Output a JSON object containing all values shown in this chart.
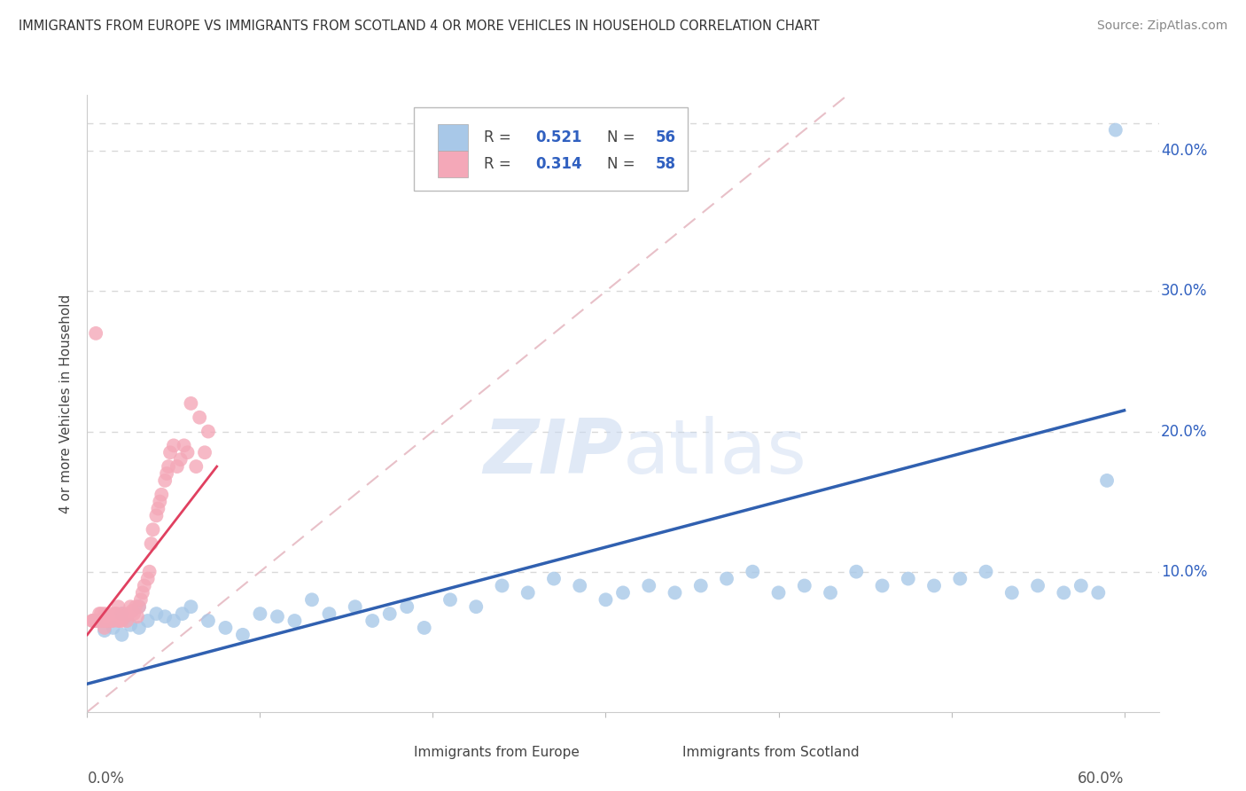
{
  "title": "IMMIGRANTS FROM EUROPE VS IMMIGRANTS FROM SCOTLAND 4 OR MORE VEHICLES IN HOUSEHOLD CORRELATION CHART",
  "source": "Source: ZipAtlas.com",
  "ylabel": "4 or more Vehicles in Household",
  "legend_europe_r": "0.521",
  "legend_europe_n": "56",
  "legend_scotland_r": "0.314",
  "legend_scotland_n": "58",
  "europe_color": "#a8c8e8",
  "scotland_color": "#f4a8b8",
  "europe_line_color": "#3060b0",
  "scotland_line_color": "#e04060",
  "ref_line_color": "#e8c0c8",
  "watermark_color": "#c8d8f0",
  "legend_value_color": "#3060c0",
  "ytick_color": "#3060c0",
  "grid_color": "#d8d8d8",
  "xlim": [
    0.0,
    0.62
  ],
  "ylim": [
    0.0,
    0.44
  ],
  "europe_x": [
    0.005,
    0.01,
    0.015,
    0.02,
    0.02,
    0.025,
    0.03,
    0.03,
    0.035,
    0.04,
    0.045,
    0.05,
    0.055,
    0.06,
    0.07,
    0.08,
    0.09,
    0.1,
    0.11,
    0.12,
    0.13,
    0.14,
    0.155,
    0.165,
    0.175,
    0.185,
    0.195,
    0.21,
    0.225,
    0.24,
    0.255,
    0.27,
    0.285,
    0.3,
    0.31,
    0.325,
    0.34,
    0.355,
    0.37,
    0.385,
    0.4,
    0.415,
    0.43,
    0.445,
    0.46,
    0.475,
    0.49,
    0.505,
    0.52,
    0.535,
    0.55,
    0.565,
    0.575,
    0.585,
    0.59,
    0.595
  ],
  "europe_y": [
    0.065,
    0.058,
    0.06,
    0.055,
    0.07,
    0.062,
    0.06,
    0.075,
    0.065,
    0.07,
    0.068,
    0.065,
    0.07,
    0.075,
    0.065,
    0.06,
    0.055,
    0.07,
    0.068,
    0.065,
    0.08,
    0.07,
    0.075,
    0.065,
    0.07,
    0.075,
    0.06,
    0.08,
    0.075,
    0.09,
    0.085,
    0.095,
    0.09,
    0.08,
    0.085,
    0.09,
    0.085,
    0.09,
    0.095,
    0.1,
    0.085,
    0.09,
    0.085,
    0.1,
    0.09,
    0.095,
    0.09,
    0.095,
    0.1,
    0.085,
    0.09,
    0.085,
    0.09,
    0.085,
    0.165,
    0.415
  ],
  "scotland_x": [
    0.003,
    0.005,
    0.005,
    0.006,
    0.007,
    0.008,
    0.008,
    0.009,
    0.01,
    0.01,
    0.011,
    0.012,
    0.013,
    0.014,
    0.015,
    0.016,
    0.017,
    0.018,
    0.018,
    0.019,
    0.02,
    0.021,
    0.022,
    0.023,
    0.024,
    0.025,
    0.026,
    0.027,
    0.028,
    0.029,
    0.03,
    0.031,
    0.032,
    0.033,
    0.035,
    0.036,
    0.037,
    0.038,
    0.04,
    0.041,
    0.042,
    0.043,
    0.045,
    0.046,
    0.047,
    0.048,
    0.05,
    0.052,
    0.054,
    0.056,
    0.058,
    0.06,
    0.063,
    0.065,
    0.068,
    0.07,
    0.003,
    0.004
  ],
  "scotland_y": [
    0.065,
    0.27,
    0.065,
    0.065,
    0.07,
    0.065,
    0.07,
    0.065,
    0.06,
    0.07,
    0.065,
    0.065,
    0.07,
    0.065,
    0.065,
    0.07,
    0.07,
    0.065,
    0.075,
    0.065,
    0.065,
    0.07,
    0.068,
    0.065,
    0.07,
    0.075,
    0.072,
    0.07,
    0.075,
    0.068,
    0.075,
    0.08,
    0.085,
    0.09,
    0.095,
    0.1,
    0.12,
    0.13,
    0.14,
    0.145,
    0.15,
    0.155,
    0.165,
    0.17,
    0.175,
    0.185,
    0.19,
    0.175,
    0.18,
    0.19,
    0.185,
    0.22,
    0.175,
    0.21,
    0.185,
    0.2,
    0.065,
    0.065
  ],
  "europe_line_x": [
    0.0,
    0.6
  ],
  "europe_line_y": [
    0.02,
    0.215
  ],
  "scotland_line_x": [
    0.0,
    0.075
  ],
  "scotland_line_y": [
    0.055,
    0.175
  ],
  "ref_line_x": [
    0.0,
    0.44
  ],
  "ref_line_y": [
    0.0,
    0.44
  ]
}
